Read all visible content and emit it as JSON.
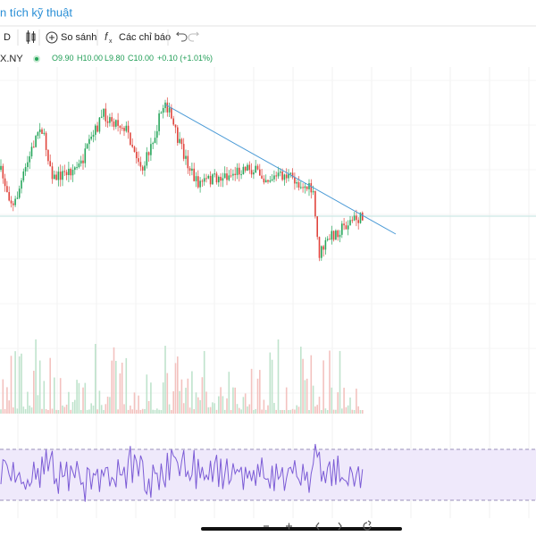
{
  "header": {
    "title": "n tích kỹ thuật"
  },
  "toolbar": {
    "interval": "D",
    "compare": "So sánh",
    "indicators": "Các chỉ báo"
  },
  "legend": {
    "symbol": "X.NY",
    "open": "O9.90",
    "high": "H10.00",
    "low": "L9.80",
    "close": "C10.00",
    "change": "+0.10 (+1.01%)"
  }
}
